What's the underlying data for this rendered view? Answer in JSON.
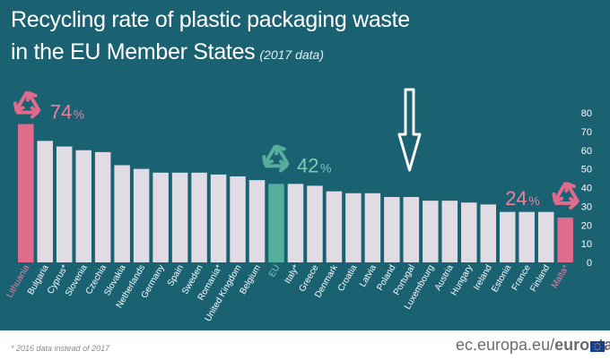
{
  "header": {
    "title_line1": "Recycling rate of plastic packaging waste",
    "title_line2": "in the EU Member States",
    "subtitle": "(2017 data)"
  },
  "chart_data": {
    "type": "bar",
    "title": "Recycling rate of plastic packaging waste in the EU Member States (2017 data)",
    "xlabel": "",
    "ylabel": "",
    "ylim": [
      0,
      80
    ],
    "y_ticks": [
      "0",
      "10",
      "20",
      "30",
      "40",
      "50",
      "60",
      "70",
      "80"
    ],
    "categories": [
      "Lithuania",
      "Bulgaria",
      "Cyprus*",
      "Slovenia",
      "Czechia",
      "Slovakia",
      "Netherlands",
      "Germany",
      "Spain",
      "Sweden",
      "Romania*",
      "United Kingdom",
      "Belgium",
      "EU",
      "Italy*",
      "Greece",
      "Denmark",
      "Croatia",
      "Latvia",
      "Poland",
      "Portugal",
      "Luxembourg",
      "Austria",
      "Hungary",
      "Ireland",
      "Estonia",
      "France",
      "Finland",
      "Malta*"
    ],
    "values": [
      74,
      65,
      62,
      60,
      59,
      52,
      50,
      48,
      48,
      48,
      47,
      46,
      44,
      42,
      42,
      41,
      38,
      37,
      37,
      35,
      35,
      33,
      33,
      32,
      31,
      27,
      27,
      27,
      24
    ],
    "highlights": {
      "max": {
        "label": "74",
        "unit": "%",
        "category": "Lithuania"
      },
      "eu": {
        "label": "42",
        "unit": "%",
        "category": "EU"
      },
      "min": {
        "label": "24",
        "unit": "%",
        "category": "Malta*"
      }
    },
    "grid": false
  },
  "colors": {
    "background": "#1a6172",
    "bar_default": "#e1dbe3",
    "bar_highlight": "#e06b8d",
    "bar_eu": "#56ae9c",
    "pink_label": "#ec80a0",
    "green_label": "#84c7b5",
    "arrow": "#ffffff"
  },
  "footer": {
    "footnote": "* 2016 data instead of 2017",
    "source_prefix": "ec.europa.eu/",
    "source_brand": "eurostat"
  },
  "icons": {
    "recycle": "recycle-icon",
    "arrow": "down-arrow-icon",
    "flag": "eu-flag-icon"
  }
}
